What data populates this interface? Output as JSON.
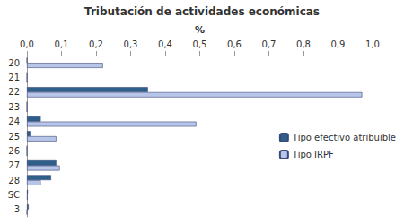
{
  "chart_data": {
    "type": "bar",
    "title": "Tributación de actividades económicas",
    "orientation": "horizontal",
    "x_label": "%",
    "categories": [
      "20",
      "21",
      "22",
      "23",
      "24",
      "25",
      "26",
      "27",
      "28",
      "SC",
      "3"
    ],
    "series": [
      {
        "name": "Tipo efectivo atribuible",
        "color": "#2e5f8a",
        "values": [
          0,
          0,
          0.35,
          0,
          0.04,
          0.01,
          0,
          0.085,
          0.07,
          0.003,
          0.005
        ]
      },
      {
        "name": "Tipo IRPF",
        "color": "#b7c5e8",
        "values": [
          0.22,
          0,
          0.97,
          0,
          0.49,
          0.085,
          0,
          0.095,
          0.04,
          0.002,
          0
        ]
      }
    ],
    "xlim": [
      0,
      1.0
    ],
    "xticks": [
      {
        "value": 0,
        "label": "0,0"
      },
      {
        "value": 0.1,
        "label": "0,1"
      },
      {
        "value": 0.2,
        "label": "0,2"
      },
      {
        "value": 0.3,
        "label": "0,3"
      },
      {
        "value": 0.4,
        "label": "0,4"
      },
      {
        "value": 0.5,
        "label": "0,5"
      },
      {
        "value": 0.6,
        "label": "0,6"
      },
      {
        "value": 0.7,
        "label": "0,7"
      },
      {
        "value": 0.8,
        "label": "0,8"
      },
      {
        "value": 0.9,
        "label": "0,9"
      },
      {
        "value": 1.0,
        "label": "1,0"
      }
    ],
    "legend": "right",
    "grid": false
  }
}
